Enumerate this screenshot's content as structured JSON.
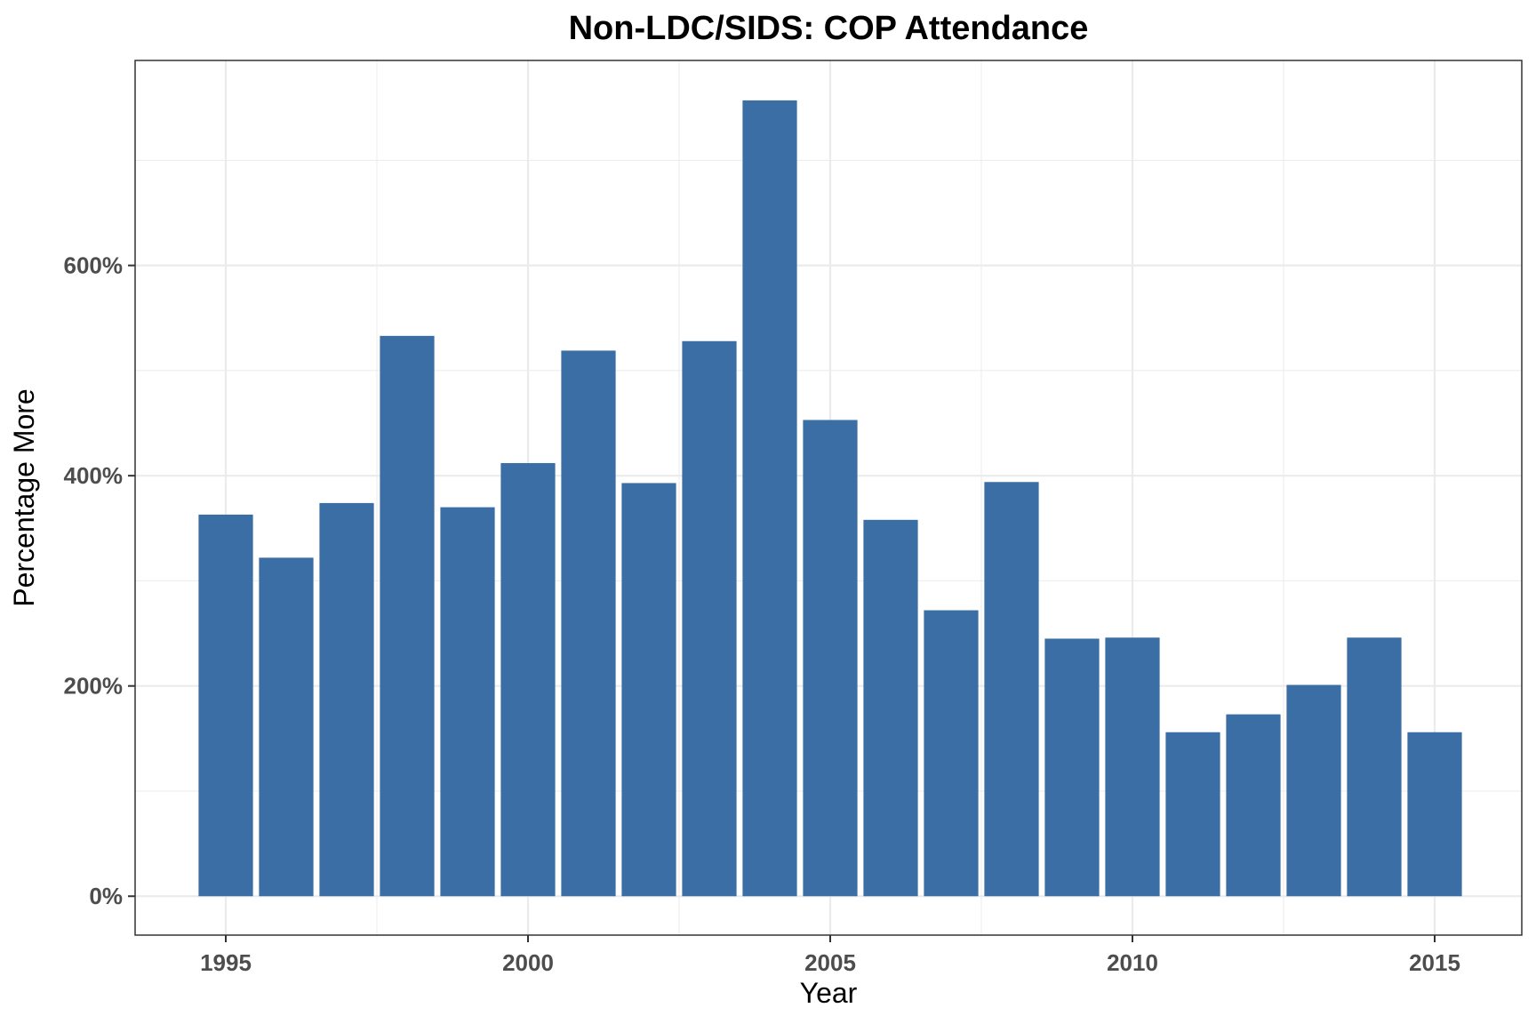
{
  "chart_data": {
    "type": "bar",
    "title": "Non-LDC/SIDS: COP Attendance",
    "xlabel": "Year",
    "ylabel": "Percentage More",
    "x": [
      1995,
      1996,
      1997,
      1998,
      1999,
      2000,
      2001,
      2002,
      2003,
      2004,
      2005,
      2006,
      2007,
      2008,
      2009,
      2010,
      2011,
      2012,
      2013,
      2014,
      2015
    ],
    "values": [
      363,
      322,
      374,
      533,
      370,
      412,
      519,
      393,
      528,
      757,
      453,
      358,
      272,
      394,
      245,
      246,
      156,
      173,
      201,
      246,
      156
    ],
    "xlim": [
      1993.5,
      1996.5
    ],
    "ylim": [
      -37,
      795
    ],
    "x_ticks": [
      1995,
      2000,
      2005,
      2010,
      2015
    ],
    "x_tick_labels": [
      "1995",
      "2000",
      "2005",
      "2010",
      "2015"
    ],
    "y_ticks": [
      0,
      200,
      400,
      600
    ],
    "y_tick_labels": [
      "0%",
      "200%",
      "400%",
      "600%"
    ],
    "grid": true,
    "legend": "none",
    "bar_color": "#3a6ea5",
    "grid_color": "#ebebeb",
    "panel_border_color": "#333333"
  }
}
